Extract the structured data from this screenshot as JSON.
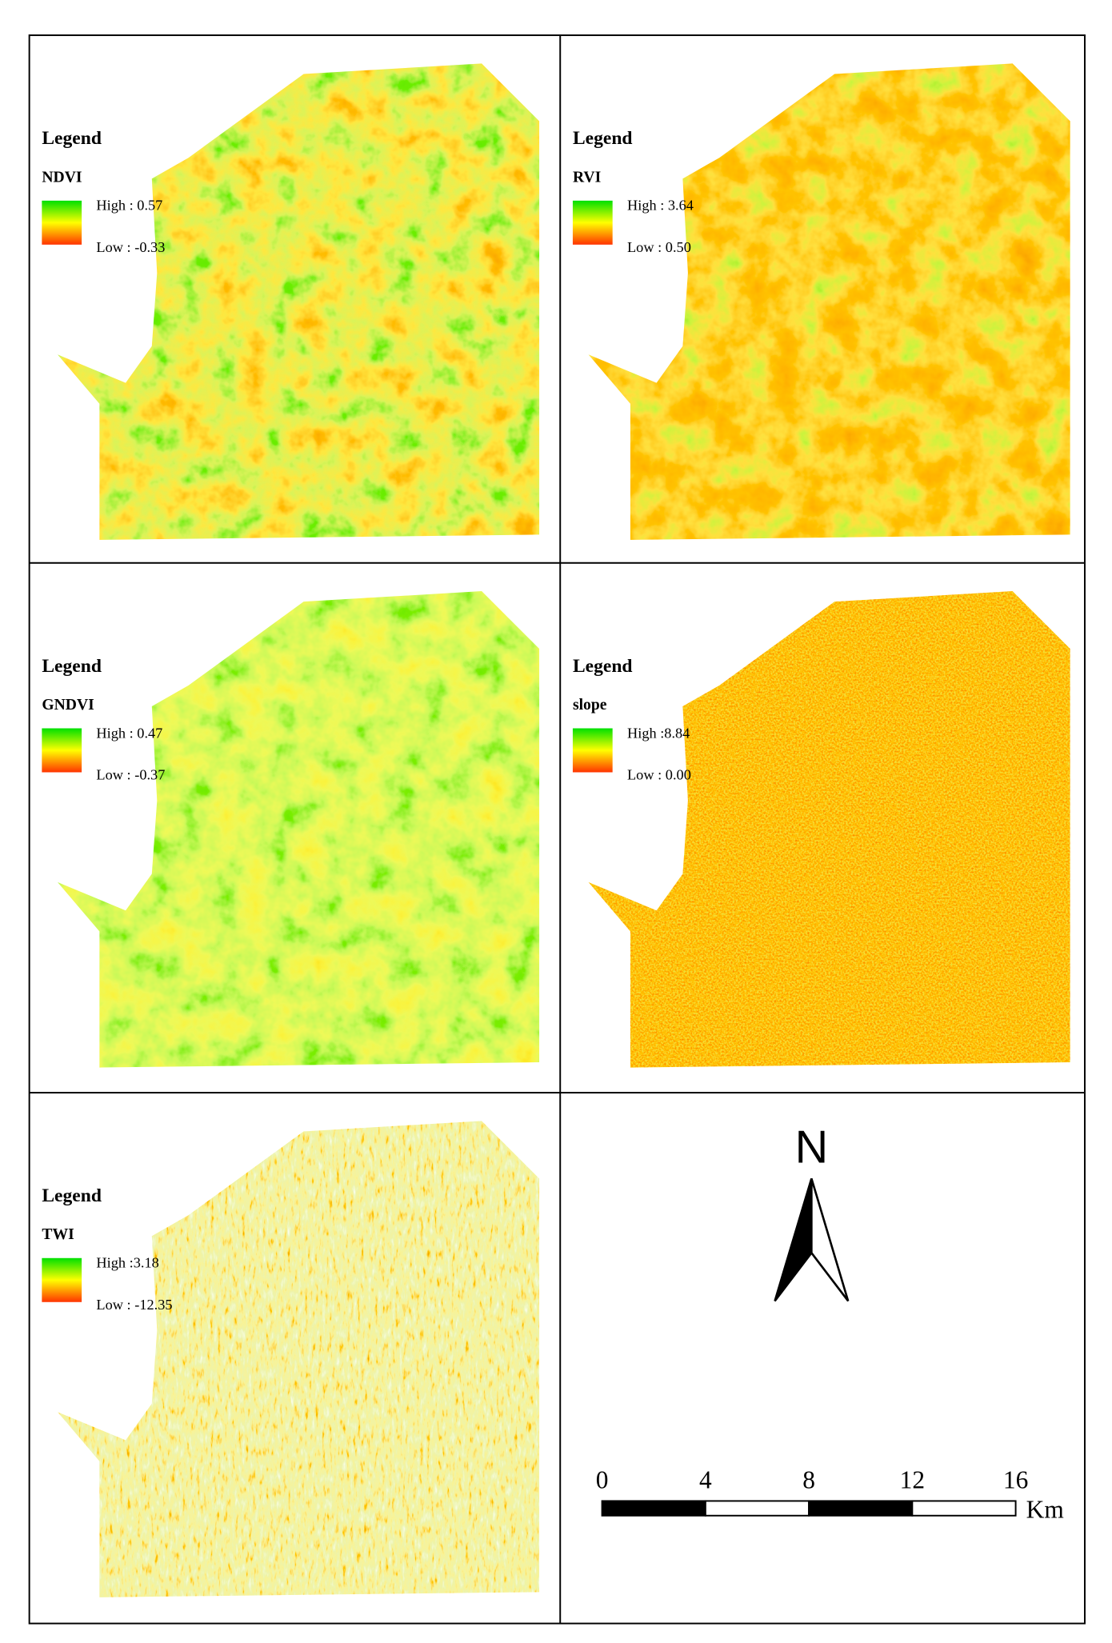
{
  "panels": [
    {
      "legend_title": "Legend",
      "layer": "NDVI",
      "high": "High : 0.57",
      "low": "Low : -0.33"
    },
    {
      "legend_title": "Legend",
      "layer": "RVI",
      "high": "High : 3.64",
      "low": "Low : 0.50"
    },
    {
      "legend_title": "Legend",
      "layer": "GNDVI",
      "high": "High : 0.47",
      "low": "Low : -0.37"
    },
    {
      "legend_title": "Legend",
      "layer": "slope",
      "high": "High :8.84",
      "low": "Low : 0.00"
    },
    {
      "legend_title": "Legend",
      "layer": "TWI",
      "high": "High :3.18",
      "low": "Low : -12.35"
    }
  ],
  "north": "N",
  "scale_bar": {
    "ticks": [
      0,
      4,
      8,
      12,
      16
    ],
    "unit": "Km"
  }
}
